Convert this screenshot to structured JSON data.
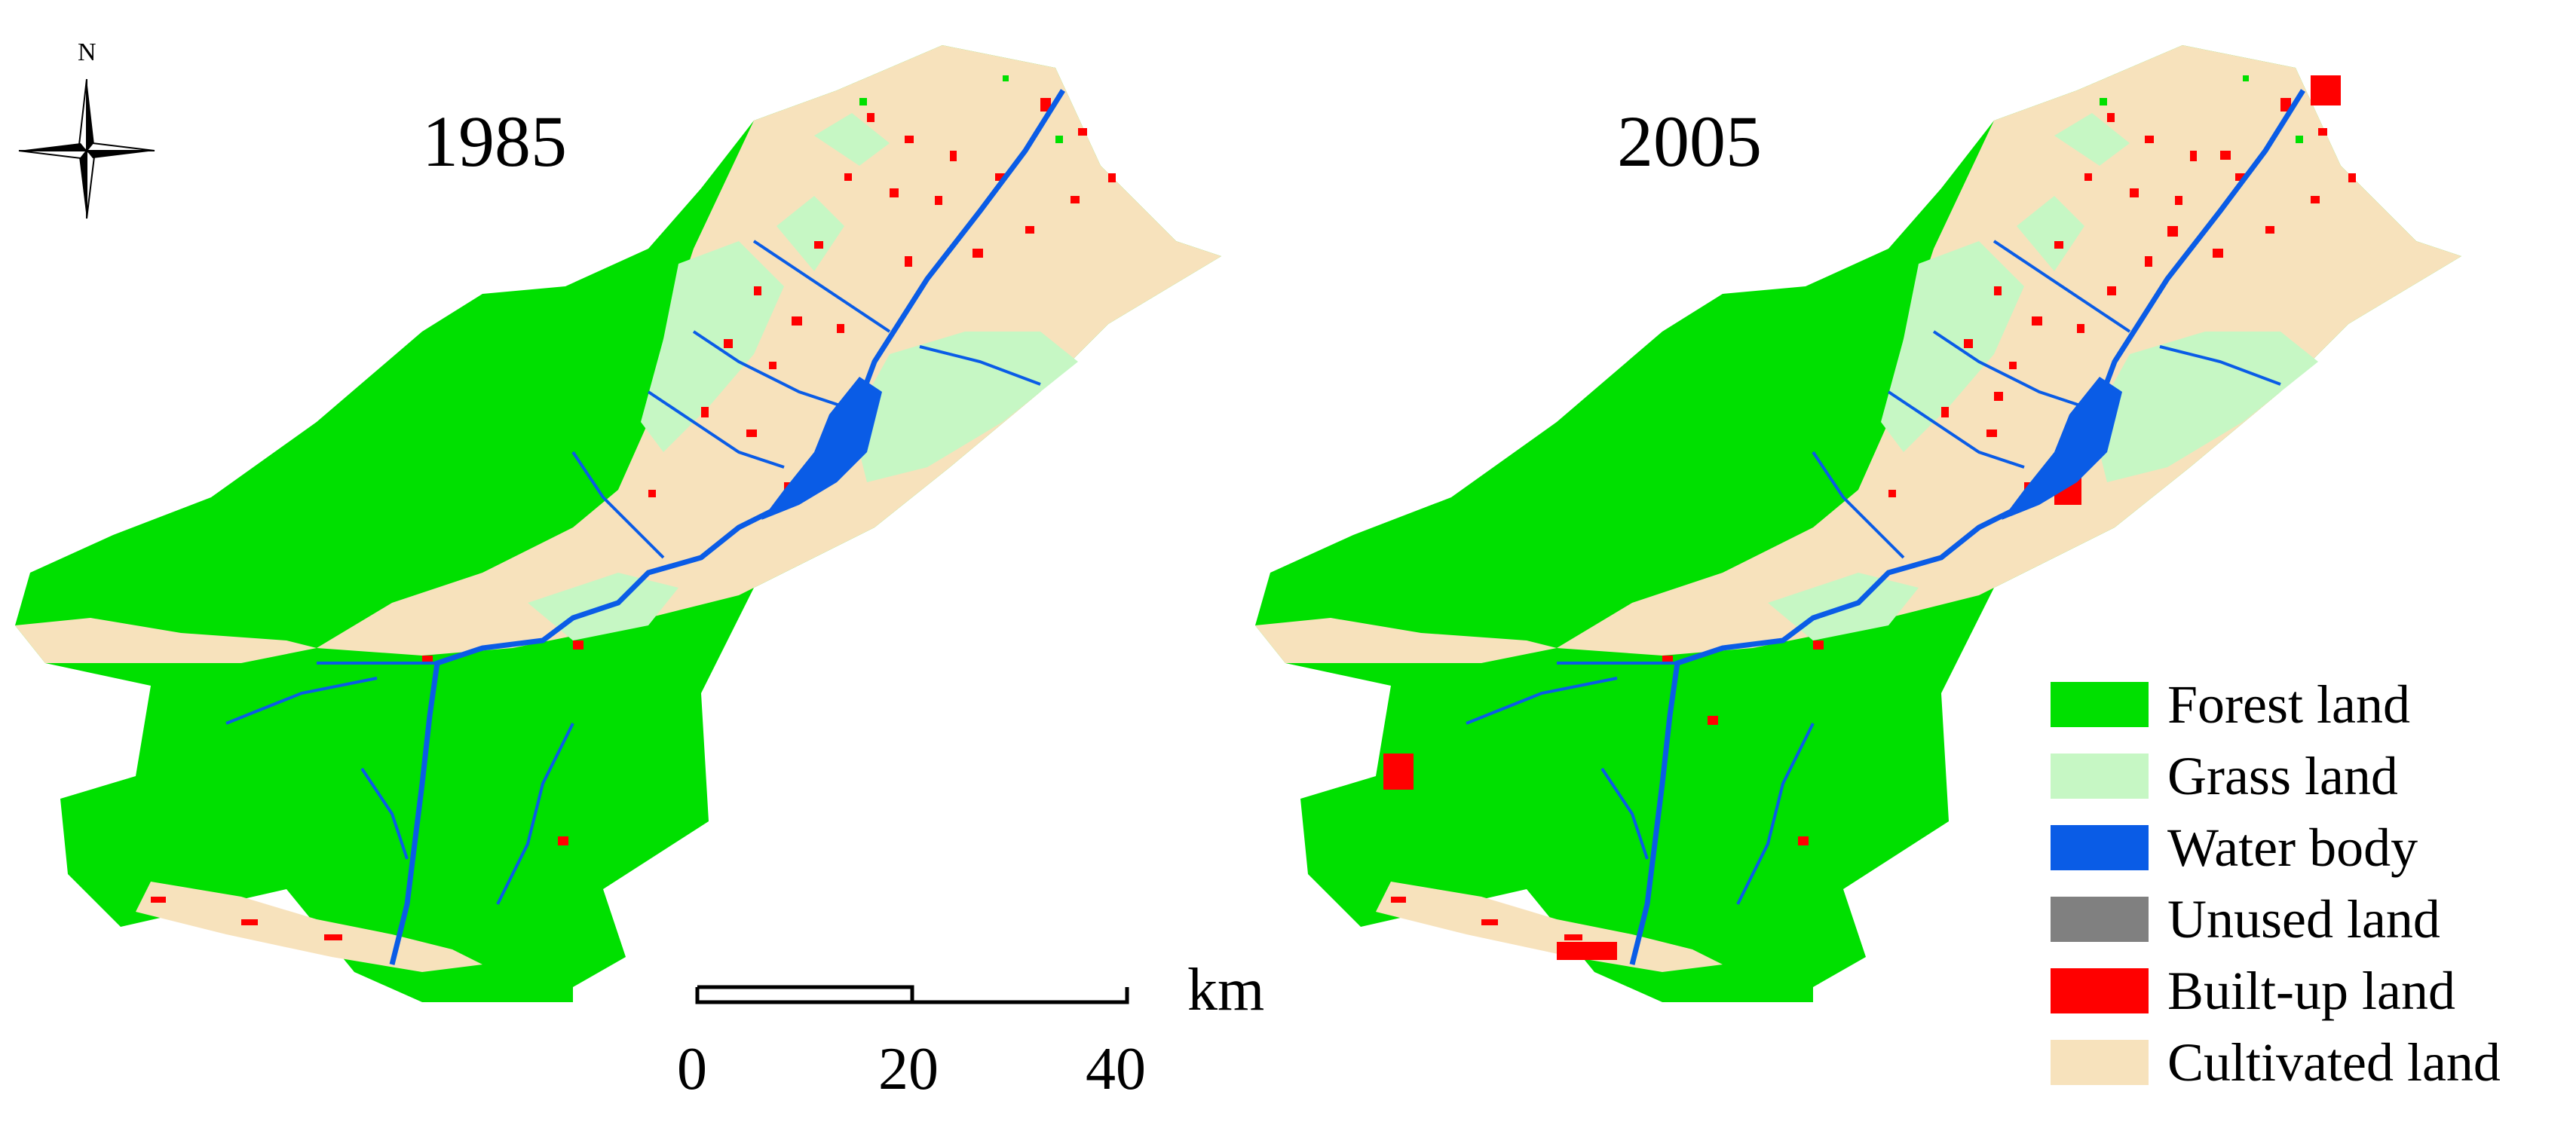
{
  "compass": {
    "label": "N",
    "icon": "north-arrow-icon"
  },
  "maps": [
    {
      "year": "1985"
    },
    {
      "year": "2005"
    }
  ],
  "scale_bar": {
    "unit": "km",
    "ticks": [
      "0",
      "20",
      "40"
    ]
  },
  "legend": {
    "items": [
      {
        "label": "Forest land",
        "color": "#00e000"
      },
      {
        "label": "Grass land",
        "color": "#c6f7c4"
      },
      {
        "label": "Water body",
        "color": "#0a5ce6"
      },
      {
        "label": "Unused land",
        "color": "#808080"
      },
      {
        "label": "Built-up land",
        "color": "#ff0000"
      },
      {
        "label": "Cultivated land",
        "color": "#f7e2bc"
      }
    ]
  },
  "colors": {
    "forest": "#00e000",
    "grass": "#c6f7c4",
    "water": "#0a5ce6",
    "built": "#ff0000",
    "cultivated": "#f7e2bc"
  }
}
